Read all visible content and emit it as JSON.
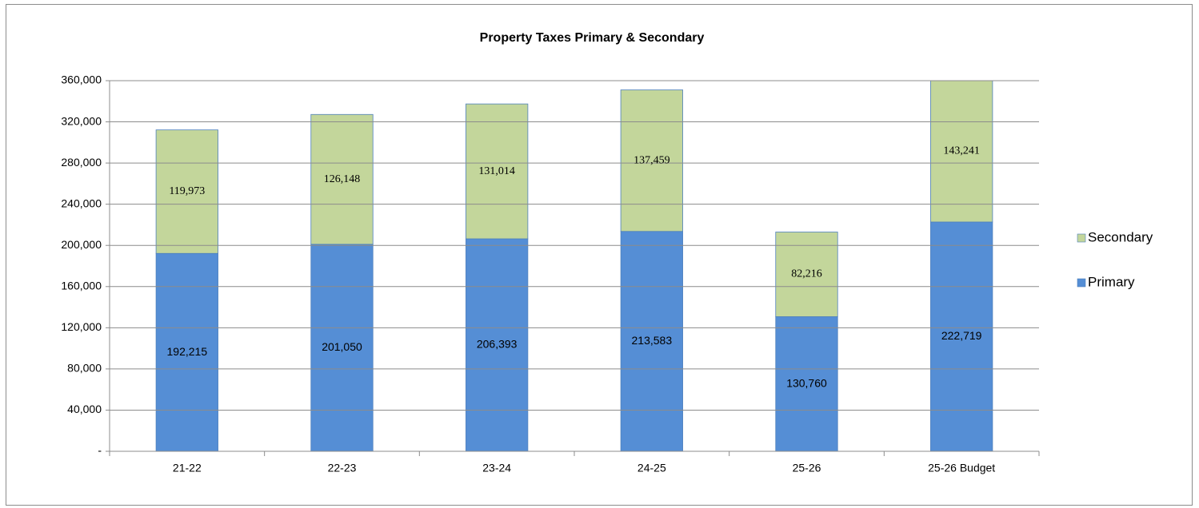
{
  "chart_data": {
    "type": "stacked_bar",
    "title": "Property Taxes Primary & Secondary",
    "categories": [
      "21-22",
      "22-23",
      "23-24",
      "24-25",
      "25-26",
      "25-26 Budget"
    ],
    "series": [
      {
        "name": "Primary",
        "color": "#558ed5",
        "values": [
          192215,
          201050,
          206393,
          213583,
          130760,
          222719
        ],
        "value_labels": [
          "192,215",
          "201,050",
          "206,393",
          "213,583",
          "130,760",
          "222,719"
        ]
      },
      {
        "name": "Secondary",
        "color": "#c3d69b",
        "values": [
          119973,
          126148,
          131014,
          137459,
          82216,
          143241
        ],
        "value_labels": [
          "119,973",
          "126,148",
          "131,014",
          "137,459",
          "82,216",
          "143,241"
        ]
      }
    ],
    "ylim": [
      0,
      360000
    ],
    "yticks": [
      {
        "value": 0,
        "label": "-"
      },
      {
        "value": 40000,
        "label": "40,000"
      },
      {
        "value": 80000,
        "label": "80,000"
      },
      {
        "value": 120000,
        "label": "120,000"
      },
      {
        "value": 160000,
        "label": "160,000"
      },
      {
        "value": 200000,
        "label": "200,000"
      },
      {
        "value": 240000,
        "label": "240,000"
      },
      {
        "value": 280000,
        "label": "280,000"
      },
      {
        "value": 320000,
        "label": "320,000"
      },
      {
        "value": 360000,
        "label": "360,000"
      }
    ],
    "grid": true,
    "legend": "right"
  }
}
